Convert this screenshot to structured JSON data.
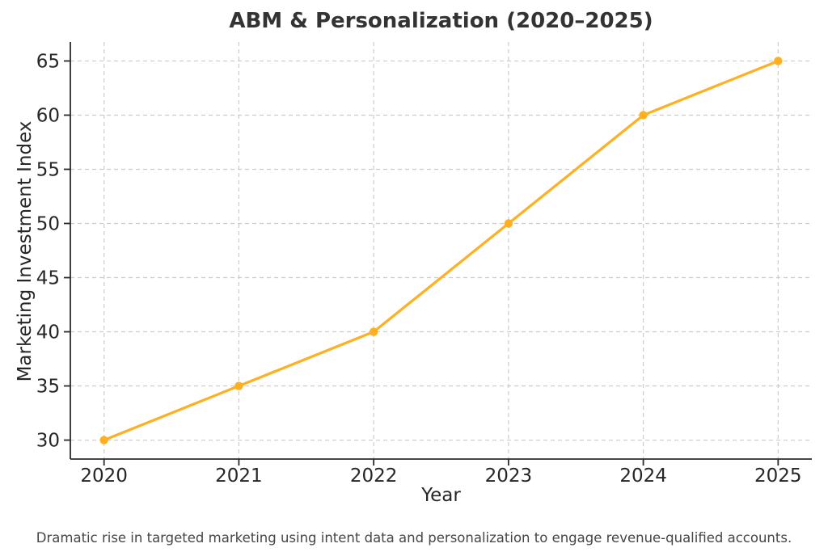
{
  "chart_data": {
    "type": "line",
    "title": "ABM & Personalization (2020–2025)",
    "xlabel": "Year",
    "ylabel": "Marketing Investment Index",
    "caption": "Dramatic rise in targeted marketing using intent data and personalization to engage revenue-qualified accounts.",
    "x": [
      2020,
      2021,
      2022,
      2023,
      2024,
      2025
    ],
    "y": [
      30,
      35,
      40,
      50,
      60,
      65
    ],
    "xticks": [
      2020,
      2021,
      2022,
      2023,
      2024,
      2025
    ],
    "yticks": [
      30,
      35,
      40,
      45,
      50,
      55,
      60,
      65
    ],
    "xlim": [
      2019.75,
      2025.25
    ],
    "ylim": [
      28.25,
      66.75
    ],
    "grid": true,
    "grid_style": "dashed",
    "legend_position": "none",
    "marker": "circle",
    "colors": {
      "line": "#FFB020",
      "marker": "#FFB020",
      "grid": "#cccccc",
      "spine": "#2b2b2b",
      "tick_label": "#262626",
      "title": "#333333",
      "caption": "#454545",
      "background": "#ffffff"
    }
  }
}
